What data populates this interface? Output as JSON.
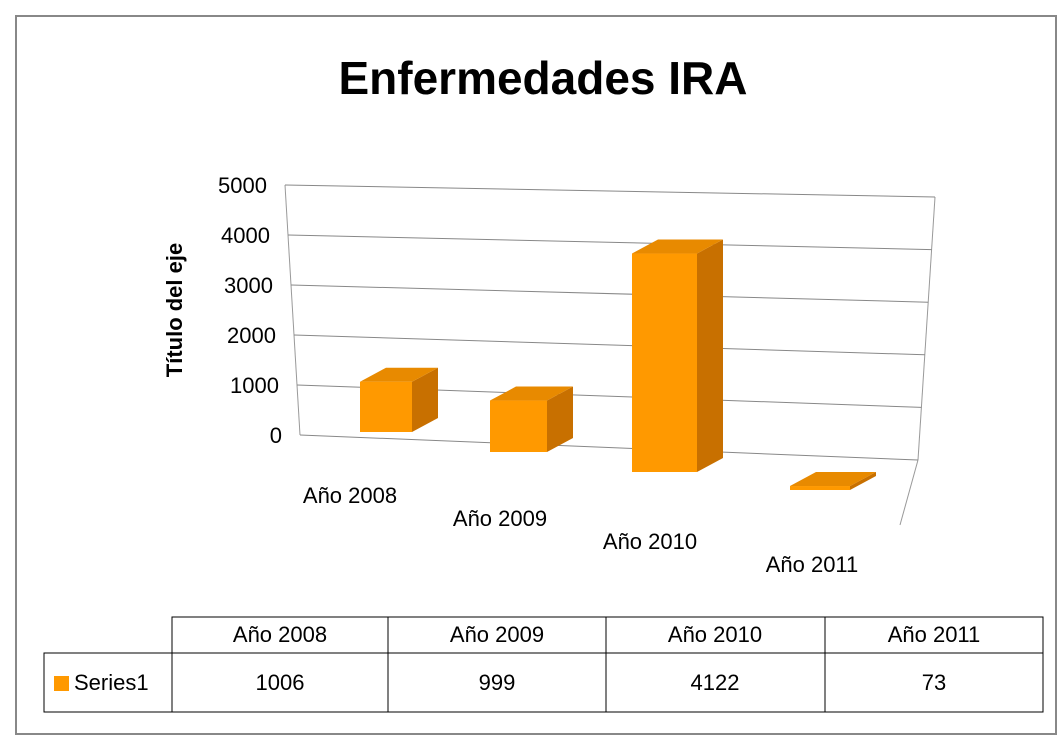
{
  "chart_data": {
    "type": "bar",
    "title": "Enfermedades IRA",
    "y_label": "Título del eje",
    "categories": [
      "Año 2008",
      "Año 2009",
      "Año 2010",
      "Año 2011"
    ],
    "series": [
      {
        "name": "Series1",
        "color": "#ff9900",
        "values": [
          1006,
          999,
          4122,
          73
        ]
      }
    ],
    "ylim": [
      0,
      5000
    ],
    "yticks": [
      0,
      1000,
      2000,
      3000,
      4000,
      5000
    ],
    "grid": true
  }
}
